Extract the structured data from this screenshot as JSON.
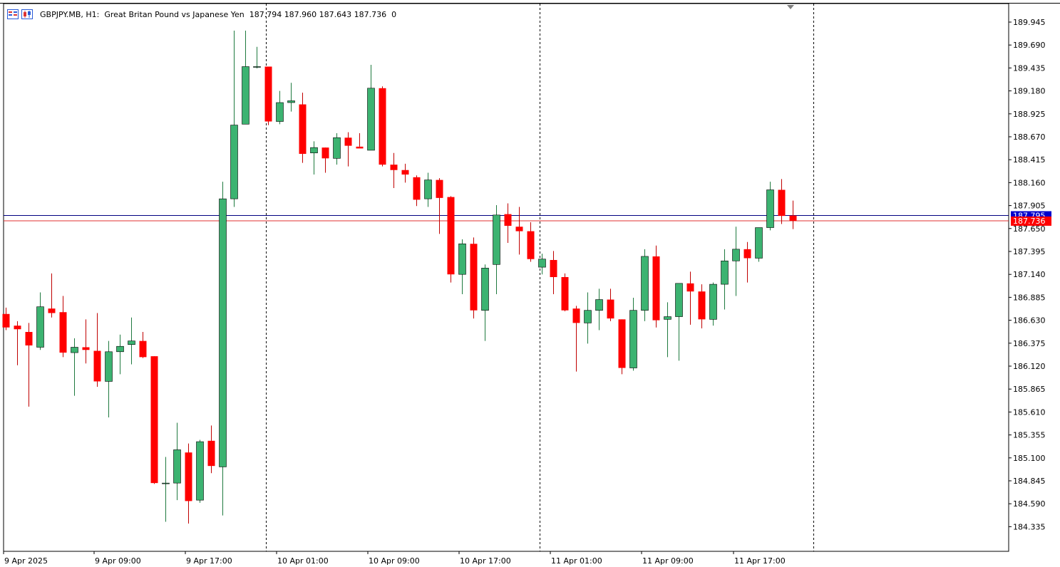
{
  "header": {
    "symbol": "GBPJPY.MB",
    "timeframe": "H1:",
    "description": "Great Britan Pound vs Japanese Yen",
    "ohlc": "187.794 187.960 187.643 187.736",
    "extra": "0"
  },
  "price_tags": {
    "ask": "187.795",
    "bid": "187.736"
  },
  "colors": {
    "bull": "#3cb371",
    "bear": "#ff0000",
    "ask_line": "#000080",
    "bid_line": "#e03030",
    "grid": "#000000"
  },
  "chart_data": {
    "type": "candlestick",
    "y_ticks": [
      "189.945",
      "189.690",
      "189.435",
      "189.180",
      "188.925",
      "188.670",
      "188.415",
      "188.160",
      "187.905",
      "187.650",
      "187.395",
      "187.140",
      "186.885",
      "186.630",
      "186.375",
      "186.120",
      "185.865",
      "185.610",
      "185.355",
      "185.100",
      "184.845",
      "184.590",
      "184.335"
    ],
    "x_labels": [
      "9 Apr 2025",
      "9 Apr 09:00",
      "9 Apr 17:00",
      "10 Apr 01:00",
      "10 Apr 09:00",
      "10 Apr 17:00",
      "11 Apr 01:00",
      "11 Apr 09:00",
      "11 Apr 17:00"
    ],
    "ylim": [
      184.27,
      190.05
    ],
    "candles": [
      {
        "o": 186.7,
        "h": 186.77,
        "l": 186.52,
        "c": 186.55
      },
      {
        "o": 186.57,
        "h": 186.62,
        "l": 186.13,
        "c": 186.53
      },
      {
        "o": 186.5,
        "h": 186.6,
        "l": 185.67,
        "c": 186.35
      },
      {
        "o": 186.33,
        "h": 186.94,
        "l": 186.3,
        "c": 186.78
      },
      {
        "o": 186.76,
        "h": 187.15,
        "l": 186.66,
        "c": 186.71
      },
      {
        "o": 186.72,
        "h": 186.9,
        "l": 186.22,
        "c": 186.27
      },
      {
        "o": 186.27,
        "h": 186.43,
        "l": 185.79,
        "c": 186.33
      },
      {
        "o": 186.33,
        "h": 186.64,
        "l": 186.15,
        "c": 186.3
      },
      {
        "o": 186.29,
        "h": 186.71,
        "l": 185.89,
        "c": 185.95
      },
      {
        "o": 185.95,
        "h": 186.4,
        "l": 185.55,
        "c": 186.28
      },
      {
        "o": 186.28,
        "h": 186.47,
        "l": 186.03,
        "c": 186.34
      },
      {
        "o": 186.36,
        "h": 186.66,
        "l": 186.14,
        "c": 186.4
      },
      {
        "o": 186.4,
        "h": 186.5,
        "l": 186.21,
        "c": 186.22
      },
      {
        "o": 186.23,
        "h": 186.23,
        "l": 184.81,
        "c": 184.82
      },
      {
        "o": 184.82,
        "h": 185.11,
        "l": 184.39,
        "c": 184.82
      },
      {
        "o": 184.82,
        "h": 185.49,
        "l": 184.63,
        "c": 185.19
      },
      {
        "o": 185.16,
        "h": 185.26,
        "l": 184.37,
        "c": 184.62
      },
      {
        "o": 184.63,
        "h": 185.3,
        "l": 184.6,
        "c": 185.28
      },
      {
        "o": 185.29,
        "h": 185.46,
        "l": 184.93,
        "c": 185.01
      },
      {
        "o": 185.0,
        "h": 188.17,
        "l": 184.46,
        "c": 187.98
      },
      {
        "o": 187.98,
        "h": 189.85,
        "l": 187.89,
        "c": 188.8
      },
      {
        "o": 188.81,
        "h": 189.85,
        "l": 188.81,
        "c": 189.45
      },
      {
        "o": 189.45,
        "h": 189.67,
        "l": 189.43,
        "c": 189.45
      },
      {
        "o": 189.45,
        "h": 189.45,
        "l": 188.8,
        "c": 188.84
      },
      {
        "o": 188.84,
        "h": 189.18,
        "l": 188.81,
        "c": 189.05
      },
      {
        "o": 189.05,
        "h": 189.27,
        "l": 188.95,
        "c": 189.07
      },
      {
        "o": 189.03,
        "h": 189.16,
        "l": 188.38,
        "c": 188.48
      },
      {
        "o": 188.49,
        "h": 188.62,
        "l": 188.25,
        "c": 188.55
      },
      {
        "o": 188.55,
        "h": 188.55,
        "l": 188.27,
        "c": 188.43
      },
      {
        "o": 188.43,
        "h": 188.71,
        "l": 188.36,
        "c": 188.66
      },
      {
        "o": 188.66,
        "h": 188.72,
        "l": 188.34,
        "c": 188.57
      },
      {
        "o": 188.56,
        "h": 188.71,
        "l": 188.56,
        "c": 188.54
      },
      {
        "o": 188.52,
        "h": 189.47,
        "l": 188.52,
        "c": 189.21
      },
      {
        "o": 189.21,
        "h": 189.23,
        "l": 188.34,
        "c": 188.36
      },
      {
        "o": 188.36,
        "h": 188.49,
        "l": 188.1,
        "c": 188.3
      },
      {
        "o": 188.3,
        "h": 188.37,
        "l": 188.16,
        "c": 188.25
      },
      {
        "o": 188.22,
        "h": 188.24,
        "l": 187.9,
        "c": 187.97
      },
      {
        "o": 187.98,
        "h": 188.27,
        "l": 187.89,
        "c": 188.19
      },
      {
        "o": 188.19,
        "h": 188.21,
        "l": 187.59,
        "c": 187.99
      },
      {
        "o": 188.0,
        "h": 188.01,
        "l": 187.05,
        "c": 187.14
      },
      {
        "o": 187.14,
        "h": 187.53,
        "l": 186.92,
        "c": 187.48
      },
      {
        "o": 187.48,
        "h": 187.55,
        "l": 186.65,
        "c": 186.74
      },
      {
        "o": 186.74,
        "h": 187.25,
        "l": 186.4,
        "c": 187.21
      },
      {
        "o": 187.25,
        "h": 187.91,
        "l": 186.92,
        "c": 187.8
      },
      {
        "o": 187.81,
        "h": 187.93,
        "l": 187.49,
        "c": 187.68
      },
      {
        "o": 187.67,
        "h": 187.89,
        "l": 187.36,
        "c": 187.62
      },
      {
        "o": 187.62,
        "h": 187.72,
        "l": 187.28,
        "c": 187.31
      },
      {
        "o": 187.22,
        "h": 187.37,
        "l": 187.14,
        "c": 187.31
      },
      {
        "o": 187.3,
        "h": 187.4,
        "l": 186.92,
        "c": 187.11
      },
      {
        "o": 187.11,
        "h": 187.15,
        "l": 186.73,
        "c": 186.74
      },
      {
        "o": 186.76,
        "h": 186.79,
        "l": 186.06,
        "c": 186.6
      },
      {
        "o": 186.6,
        "h": 186.94,
        "l": 186.37,
        "c": 186.74
      },
      {
        "o": 186.74,
        "h": 186.98,
        "l": 186.52,
        "c": 186.86
      },
      {
        "o": 186.86,
        "h": 186.98,
        "l": 186.62,
        "c": 186.65
      },
      {
        "o": 186.64,
        "h": 186.64,
        "l": 186.03,
        "c": 186.1
      },
      {
        "o": 186.1,
        "h": 186.88,
        "l": 186.07,
        "c": 186.74
      },
      {
        "o": 186.74,
        "h": 187.42,
        "l": 186.62,
        "c": 187.34
      },
      {
        "o": 187.34,
        "h": 187.46,
        "l": 186.55,
        "c": 186.63
      },
      {
        "o": 186.64,
        "h": 186.83,
        "l": 186.22,
        "c": 186.67
      },
      {
        "o": 186.67,
        "h": 187.04,
        "l": 186.18,
        "c": 187.04
      },
      {
        "o": 187.04,
        "h": 187.17,
        "l": 186.58,
        "c": 186.95
      },
      {
        "o": 186.95,
        "h": 187.03,
        "l": 186.54,
        "c": 186.64
      },
      {
        "o": 186.64,
        "h": 187.05,
        "l": 186.57,
        "c": 187.03
      },
      {
        "o": 187.03,
        "h": 187.42,
        "l": 186.75,
        "c": 187.29
      },
      {
        "o": 187.29,
        "h": 187.67,
        "l": 186.9,
        "c": 187.42
      },
      {
        "o": 187.42,
        "h": 187.5,
        "l": 187.05,
        "c": 187.32
      },
      {
        "o": 187.32,
        "h": 187.66,
        "l": 187.28,
        "c": 187.66
      },
      {
        "o": 187.66,
        "h": 188.17,
        "l": 187.63,
        "c": 188.08
      },
      {
        "o": 188.08,
        "h": 188.2,
        "l": 187.7,
        "c": 187.79
      },
      {
        "o": 187.794,
        "h": 187.96,
        "l": 187.643,
        "c": 187.736
      }
    ]
  }
}
